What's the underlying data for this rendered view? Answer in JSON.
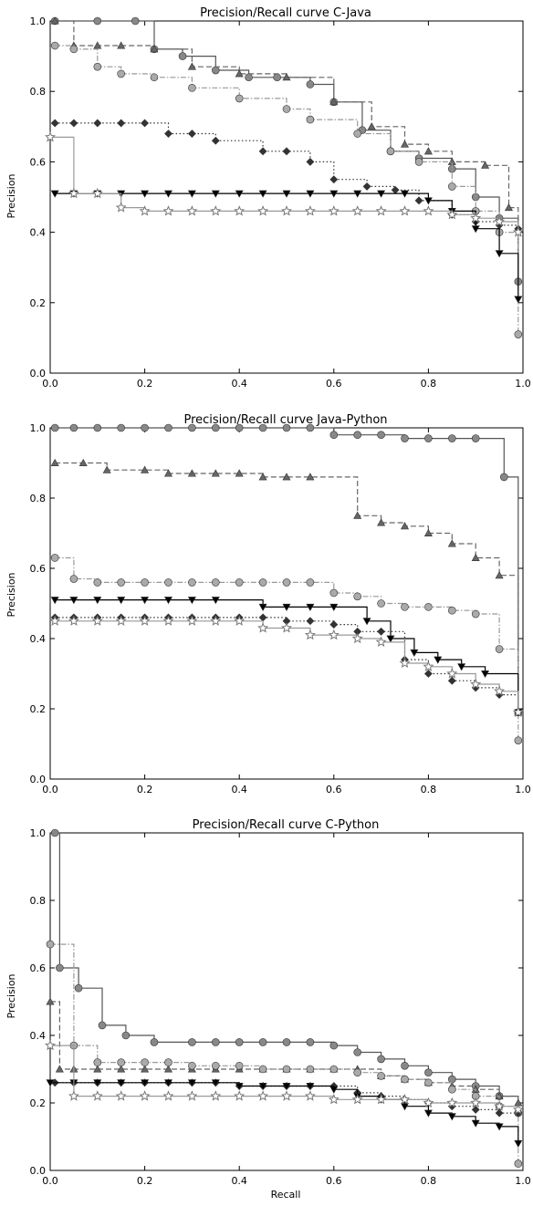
{
  "chart_data": [
    {
      "type": "line",
      "title": "Precision/Recall curve C-Java",
      "xlabel": "",
      "ylabel": "Precision",
      "xlim": [
        0,
        1
      ],
      "ylim": [
        0,
        1
      ],
      "xticks": [
        "0.0",
        "0.2",
        "0.4",
        "0.6",
        "0.8",
        "1.0"
      ],
      "yticks": [
        "0.0",
        "0.2",
        "0.4",
        "0.6",
        "0.8",
        "1.0"
      ],
      "grid": false,
      "series": [
        {
          "marker": "circle",
          "color": "#888888",
          "dash": "solid",
          "stroke": "#555555",
          "x": [
            0.01,
            0.1,
            0.18,
            0.22,
            0.28,
            0.35,
            0.42,
            0.48,
            0.55,
            0.6,
            0.66,
            0.72,
            0.78,
            0.85,
            0.9,
            0.95,
            0.99
          ],
          "y": [
            1.0,
            1.0,
            1.0,
            0.92,
            0.9,
            0.86,
            0.84,
            0.84,
            0.82,
            0.77,
            0.69,
            0.63,
            0.61,
            0.58,
            0.5,
            0.44,
            0.26
          ]
        },
        {
          "marker": "triangle",
          "color": "#666666",
          "dash": "dashed",
          "stroke": "#666666",
          "x": [
            0.01,
            0.05,
            0.1,
            0.15,
            0.22,
            0.3,
            0.4,
            0.5,
            0.6,
            0.68,
            0.75,
            0.8,
            0.85,
            0.92,
            0.97,
            0.99
          ],
          "y": [
            1.0,
            0.93,
            0.93,
            0.93,
            0.92,
            0.87,
            0.85,
            0.84,
            0.77,
            0.7,
            0.65,
            0.63,
            0.6,
            0.59,
            0.47,
            0.41
          ]
        },
        {
          "marker": "circle",
          "color": "#aaaaaa",
          "dash": "dashdot",
          "stroke": "#999999",
          "x": [
            0.01,
            0.05,
            0.1,
            0.15,
            0.22,
            0.3,
            0.4,
            0.5,
            0.55,
            0.65,
            0.72,
            0.78,
            0.85,
            0.9,
            0.95,
            0.99
          ],
          "y": [
            0.93,
            0.92,
            0.87,
            0.85,
            0.84,
            0.81,
            0.78,
            0.75,
            0.72,
            0.68,
            0.63,
            0.6,
            0.53,
            0.46,
            0.4,
            0.11
          ]
        },
        {
          "marker": "diamond",
          "color": "#333333",
          "dash": "dotted",
          "stroke": "#333333",
          "x": [
            0.01,
            0.05,
            0.1,
            0.15,
            0.2,
            0.25,
            0.3,
            0.35,
            0.45,
            0.5,
            0.55,
            0.6,
            0.67,
            0.73,
            0.78,
            0.85,
            0.9,
            0.95,
            0.99
          ],
          "y": [
            0.71,
            0.71,
            0.71,
            0.71,
            0.71,
            0.68,
            0.68,
            0.66,
            0.63,
            0.63,
            0.6,
            0.55,
            0.53,
            0.52,
            0.49,
            0.45,
            0.43,
            0.42,
            0.41
          ]
        },
        {
          "marker": "triangle-down",
          "color": "#000000",
          "dash": "solid",
          "stroke": "#000000",
          "x": [
            0.01,
            0.05,
            0.1,
            0.15,
            0.2,
            0.25,
            0.3,
            0.35,
            0.4,
            0.45,
            0.5,
            0.55,
            0.6,
            0.65,
            0.7,
            0.75,
            0.8,
            0.85,
            0.9,
            0.95,
            0.99
          ],
          "y": [
            0.51,
            0.51,
            0.51,
            0.51,
            0.51,
            0.51,
            0.51,
            0.51,
            0.51,
            0.51,
            0.51,
            0.51,
            0.51,
            0.51,
            0.51,
            0.51,
            0.49,
            0.46,
            0.41,
            0.34,
            0.21
          ]
        },
        {
          "marker": "star",
          "color": "#aaaaaa",
          "dash": "solid",
          "stroke": "#999999",
          "x": [
            0.0,
            0.05,
            0.1,
            0.15,
            0.2,
            0.25,
            0.3,
            0.35,
            0.4,
            0.45,
            0.5,
            0.55,
            0.6,
            0.65,
            0.7,
            0.75,
            0.8,
            0.85,
            0.9,
            0.95,
            0.99
          ],
          "y": [
            0.67,
            0.51,
            0.51,
            0.47,
            0.46,
            0.46,
            0.46,
            0.46,
            0.46,
            0.46,
            0.46,
            0.46,
            0.46,
            0.46,
            0.46,
            0.46,
            0.46,
            0.45,
            0.44,
            0.43,
            0.4
          ]
        }
      ]
    },
    {
      "type": "line",
      "title": "Precision/Recall curve Java-Python",
      "xlabel": "",
      "ylabel": "Precision",
      "xlim": [
        0,
        1
      ],
      "ylim": [
        0,
        1
      ],
      "xticks": [
        "0.0",
        "0.2",
        "0.4",
        "0.6",
        "0.8",
        "1.0"
      ],
      "yticks": [
        "0.0",
        "0.2",
        "0.4",
        "0.6",
        "0.8",
        "1.0"
      ],
      "grid": false,
      "series": [
        {
          "marker": "circle",
          "color": "#888888",
          "dash": "solid",
          "stroke": "#555555",
          "x": [
            0.01,
            0.05,
            0.1,
            0.15,
            0.2,
            0.25,
            0.3,
            0.35,
            0.4,
            0.45,
            0.5,
            0.55,
            0.6,
            0.65,
            0.7,
            0.75,
            0.8,
            0.85,
            0.9,
            0.96,
            0.99
          ],
          "y": [
            1.0,
            1.0,
            1.0,
            1.0,
            1.0,
            1.0,
            1.0,
            1.0,
            1.0,
            1.0,
            1.0,
            1.0,
            0.98,
            0.98,
            0.98,
            0.97,
            0.97,
            0.97,
            0.97,
            0.86,
            0.19
          ]
        },
        {
          "marker": "triangle",
          "color": "#666666",
          "dash": "dashed",
          "stroke": "#666666",
          "x": [
            0.01,
            0.07,
            0.12,
            0.2,
            0.25,
            0.3,
            0.35,
            0.4,
            0.45,
            0.5,
            0.55,
            0.65,
            0.7,
            0.75,
            0.8,
            0.85,
            0.9,
            0.95,
            0.99
          ],
          "y": [
            0.9,
            0.9,
            0.88,
            0.88,
            0.87,
            0.87,
            0.87,
            0.87,
            0.86,
            0.86,
            0.86,
            0.75,
            0.73,
            0.72,
            0.7,
            0.67,
            0.63,
            0.58,
            0.19
          ]
        },
        {
          "marker": "circle",
          "color": "#aaaaaa",
          "dash": "dashdot",
          "stroke": "#999999",
          "x": [
            0.01,
            0.05,
            0.1,
            0.15,
            0.2,
            0.25,
            0.3,
            0.35,
            0.4,
            0.45,
            0.5,
            0.55,
            0.6,
            0.65,
            0.7,
            0.75,
            0.8,
            0.85,
            0.9,
            0.95,
            0.99
          ],
          "y": [
            0.63,
            0.57,
            0.56,
            0.56,
            0.56,
            0.56,
            0.56,
            0.56,
            0.56,
            0.56,
            0.56,
            0.56,
            0.53,
            0.52,
            0.5,
            0.49,
            0.49,
            0.48,
            0.47,
            0.37,
            0.11
          ]
        },
        {
          "marker": "diamond",
          "color": "#333333",
          "dash": "dotted",
          "stroke": "#333333",
          "x": [
            0.01,
            0.05,
            0.1,
            0.15,
            0.2,
            0.25,
            0.3,
            0.35,
            0.4,
            0.45,
            0.5,
            0.55,
            0.6,
            0.65,
            0.7,
            0.75,
            0.8,
            0.85,
            0.9,
            0.95,
            0.99
          ],
          "y": [
            0.46,
            0.46,
            0.46,
            0.46,
            0.46,
            0.46,
            0.46,
            0.46,
            0.46,
            0.46,
            0.45,
            0.45,
            0.44,
            0.42,
            0.42,
            0.34,
            0.3,
            0.28,
            0.26,
            0.24,
            0.19
          ]
        },
        {
          "marker": "triangle-down",
          "color": "#000000",
          "dash": "solid",
          "stroke": "#000000",
          "x": [
            0.01,
            0.05,
            0.1,
            0.15,
            0.2,
            0.25,
            0.3,
            0.35,
            0.45,
            0.5,
            0.55,
            0.6,
            0.67,
            0.72,
            0.77,
            0.82,
            0.87,
            0.92,
            0.99
          ],
          "y": [
            0.51,
            0.51,
            0.51,
            0.51,
            0.51,
            0.51,
            0.51,
            0.51,
            0.49,
            0.49,
            0.49,
            0.49,
            0.45,
            0.4,
            0.36,
            0.34,
            0.32,
            0.3,
            0.19
          ]
        },
        {
          "marker": "star",
          "color": "#aaaaaa",
          "dash": "solid",
          "stroke": "#999999",
          "x": [
            0.01,
            0.05,
            0.1,
            0.15,
            0.2,
            0.25,
            0.3,
            0.35,
            0.4,
            0.45,
            0.5,
            0.55,
            0.6,
            0.65,
            0.7,
            0.75,
            0.8,
            0.85,
            0.9,
            0.95,
            0.99
          ],
          "y": [
            0.45,
            0.45,
            0.45,
            0.45,
            0.45,
            0.45,
            0.45,
            0.45,
            0.45,
            0.43,
            0.43,
            0.41,
            0.41,
            0.4,
            0.39,
            0.33,
            0.32,
            0.3,
            0.27,
            0.25,
            0.19
          ]
        }
      ]
    },
    {
      "type": "line",
      "title": "Precision/Recall curve C-Python",
      "xlabel": "Recall",
      "ylabel": "Precision",
      "xlim": [
        0,
        1
      ],
      "ylim": [
        0,
        1
      ],
      "xticks": [
        "0.0",
        "0.2",
        "0.4",
        "0.6",
        "0.8",
        "1.0"
      ],
      "yticks": [
        "0.0",
        "0.2",
        "0.4",
        "0.6",
        "0.8",
        "1.0"
      ],
      "grid": false,
      "series": [
        {
          "marker": "circle",
          "color": "#888888",
          "dash": "solid",
          "stroke": "#555555",
          "x": [
            0.01,
            0.02,
            0.06,
            0.11,
            0.16,
            0.22,
            0.3,
            0.35,
            0.4,
            0.45,
            0.5,
            0.55,
            0.6,
            0.65,
            0.7,
            0.75,
            0.8,
            0.85,
            0.9,
            0.95,
            0.99
          ],
          "y": [
            1.0,
            0.6,
            0.54,
            0.43,
            0.4,
            0.38,
            0.38,
            0.38,
            0.38,
            0.38,
            0.38,
            0.38,
            0.37,
            0.35,
            0.33,
            0.31,
            0.29,
            0.27,
            0.25,
            0.22,
            0.17
          ]
        },
        {
          "marker": "triangle",
          "color": "#666666",
          "dash": "dashed",
          "stroke": "#666666",
          "x": [
            0.0,
            0.02,
            0.05,
            0.1,
            0.15,
            0.2,
            0.25,
            0.3,
            0.35,
            0.4,
            0.45,
            0.5,
            0.55,
            0.6,
            0.65,
            0.7,
            0.75,
            0.8,
            0.85,
            0.9,
            0.95,
            0.99
          ],
          "y": [
            0.5,
            0.3,
            0.3,
            0.3,
            0.3,
            0.3,
            0.3,
            0.3,
            0.3,
            0.3,
            0.3,
            0.3,
            0.3,
            0.3,
            0.3,
            0.28,
            0.27,
            0.26,
            0.25,
            0.24,
            0.22,
            0.2
          ]
        },
        {
          "marker": "circle",
          "color": "#aaaaaa",
          "dash": "dashdot",
          "stroke": "#999999",
          "x": [
            0.0,
            0.05,
            0.1,
            0.15,
            0.2,
            0.25,
            0.3,
            0.35,
            0.4,
            0.45,
            0.5,
            0.55,
            0.6,
            0.65,
            0.7,
            0.75,
            0.8,
            0.85,
            0.9,
            0.95,
            0.99
          ],
          "y": [
            0.67,
            0.37,
            0.32,
            0.32,
            0.32,
            0.32,
            0.31,
            0.31,
            0.31,
            0.3,
            0.3,
            0.3,
            0.3,
            0.29,
            0.28,
            0.27,
            0.26,
            0.24,
            0.22,
            0.19,
            0.02
          ]
        },
        {
          "marker": "diamond",
          "color": "#333333",
          "dash": "dotted",
          "stroke": "#333333",
          "x": [
            0.01,
            0.05,
            0.1,
            0.15,
            0.2,
            0.25,
            0.3,
            0.35,
            0.4,
            0.45,
            0.5,
            0.55,
            0.6,
            0.65,
            0.7,
            0.75,
            0.8,
            0.85,
            0.9,
            0.95,
            0.99
          ],
          "y": [
            0.26,
            0.26,
            0.26,
            0.26,
            0.26,
            0.26,
            0.26,
            0.26,
            0.25,
            0.25,
            0.25,
            0.25,
            0.25,
            0.23,
            0.22,
            0.21,
            0.2,
            0.19,
            0.18,
            0.17,
            0.17
          ]
        },
        {
          "marker": "triangle-down",
          "color": "#000000",
          "dash": "solid",
          "stroke": "#000000",
          "x": [
            0.0,
            0.05,
            0.1,
            0.15,
            0.2,
            0.25,
            0.3,
            0.35,
            0.4,
            0.45,
            0.5,
            0.55,
            0.6,
            0.65,
            0.7,
            0.75,
            0.8,
            0.85,
            0.9,
            0.95,
            0.99
          ],
          "y": [
            0.26,
            0.26,
            0.26,
            0.26,
            0.26,
            0.26,
            0.26,
            0.26,
            0.25,
            0.25,
            0.25,
            0.25,
            0.24,
            0.22,
            0.21,
            0.19,
            0.17,
            0.16,
            0.14,
            0.13,
            0.08
          ]
        },
        {
          "marker": "star",
          "color": "#aaaaaa",
          "dash": "solid",
          "stroke": "#999999",
          "x": [
            0.0,
            0.05,
            0.1,
            0.15,
            0.2,
            0.25,
            0.3,
            0.35,
            0.4,
            0.45,
            0.5,
            0.55,
            0.6,
            0.65,
            0.7,
            0.75,
            0.8,
            0.85,
            0.9,
            0.95,
            0.99
          ],
          "y": [
            0.37,
            0.22,
            0.22,
            0.22,
            0.22,
            0.22,
            0.22,
            0.22,
            0.22,
            0.22,
            0.22,
            0.22,
            0.21,
            0.21,
            0.21,
            0.21,
            0.2,
            0.2,
            0.2,
            0.19,
            0.18
          ]
        }
      ]
    }
  ]
}
